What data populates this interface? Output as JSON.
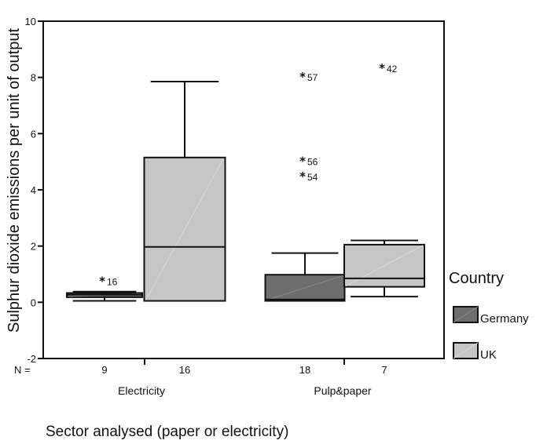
{
  "chart_data": {
    "type": "boxplot",
    "title": "",
    "ylabel": "Sulphur dioxide emissions per unit of output",
    "xlabel": "Sector analysed (paper or electricity)",
    "ylim": [
      -2,
      10
    ],
    "y_ticks": [
      -2,
      0,
      2,
      4,
      6,
      8,
      10
    ],
    "grid": false,
    "legend": {
      "title": "Country",
      "position": "right",
      "entries": [
        {
          "name": "Germany",
          "color": "#6e6e6e"
        },
        {
          "name": "UK",
          "color": "#c6c6c6"
        }
      ]
    },
    "n_label": "N =",
    "groups": [
      {
        "label": "Electricity",
        "boxes": [
          {
            "series": "Germany",
            "n": "9",
            "min": 0.05,
            "q1": 0.18,
            "median": 0.27,
            "q3": 0.33,
            "max": 0.38,
            "outliers": [
              {
                "value": 0.78,
                "label": "16"
              }
            ]
          },
          {
            "series": "UK",
            "n": "16",
            "min": 0.05,
            "q1": 0.05,
            "median": 1.97,
            "q3": 5.15,
            "max": 7.85,
            "outliers": []
          }
        ]
      },
      {
        "label": "Pulp&paper",
        "boxes": [
          {
            "series": "Germany",
            "n": "18",
            "min": 0.05,
            "q1": 0.05,
            "median": 0.1,
            "q3": 0.98,
            "max": 1.75,
            "outliers": [
              {
                "value": 8.05,
                "label": "57"
              },
              {
                "value": 5.05,
                "label": "56"
              },
              {
                "value": 4.5,
                "label": "54"
              }
            ]
          },
          {
            "series": "UK",
            "n": "7",
            "min": 0.2,
            "q1": 0.55,
            "median": 0.85,
            "q3": 2.05,
            "max": 2.2,
            "outliers": [
              {
                "value": 8.35,
                "label": "42"
              }
            ]
          }
        ]
      }
    ]
  }
}
